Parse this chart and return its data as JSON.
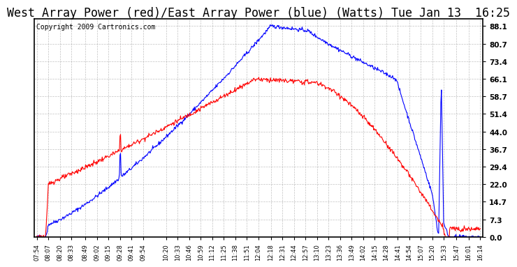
{
  "title": "West Array Power (red)/East Array Power (blue) (Watts) Tue Jan 13  16:25",
  "copyright": "Copyright 2009 Cartronics.com",
  "background_color": "#ffffff",
  "plot_bg_color": "#ffffff",
  "grid_color": "#999999",
  "y_ticks": [
    0.0,
    7.3,
    14.7,
    22.0,
    29.4,
    36.7,
    44.0,
    51.4,
    58.7,
    66.1,
    73.4,
    80.7,
    88.1
  ],
  "ylim": [
    0.0,
    91.0
  ],
  "x_labels": [
    "07:54",
    "08:07",
    "08:20",
    "08:33",
    "08:49",
    "09:02",
    "09:15",
    "09:28",
    "09:41",
    "09:54",
    "10:20",
    "10:33",
    "10:46",
    "10:59",
    "11:12",
    "11:25",
    "11:38",
    "11:51",
    "12:04",
    "12:18",
    "12:31",
    "12:44",
    "12:57",
    "13:10",
    "13:23",
    "13:36",
    "13:49",
    "14:02",
    "14:15",
    "14:28",
    "14:41",
    "14:54",
    "15:07",
    "15:20",
    "15:33",
    "15:47",
    "16:01",
    "16:14"
  ],
  "blue_color": "#0000ff",
  "red_color": "#ff0000",
  "title_fontsize": 12,
  "copyright_fontsize": 7
}
